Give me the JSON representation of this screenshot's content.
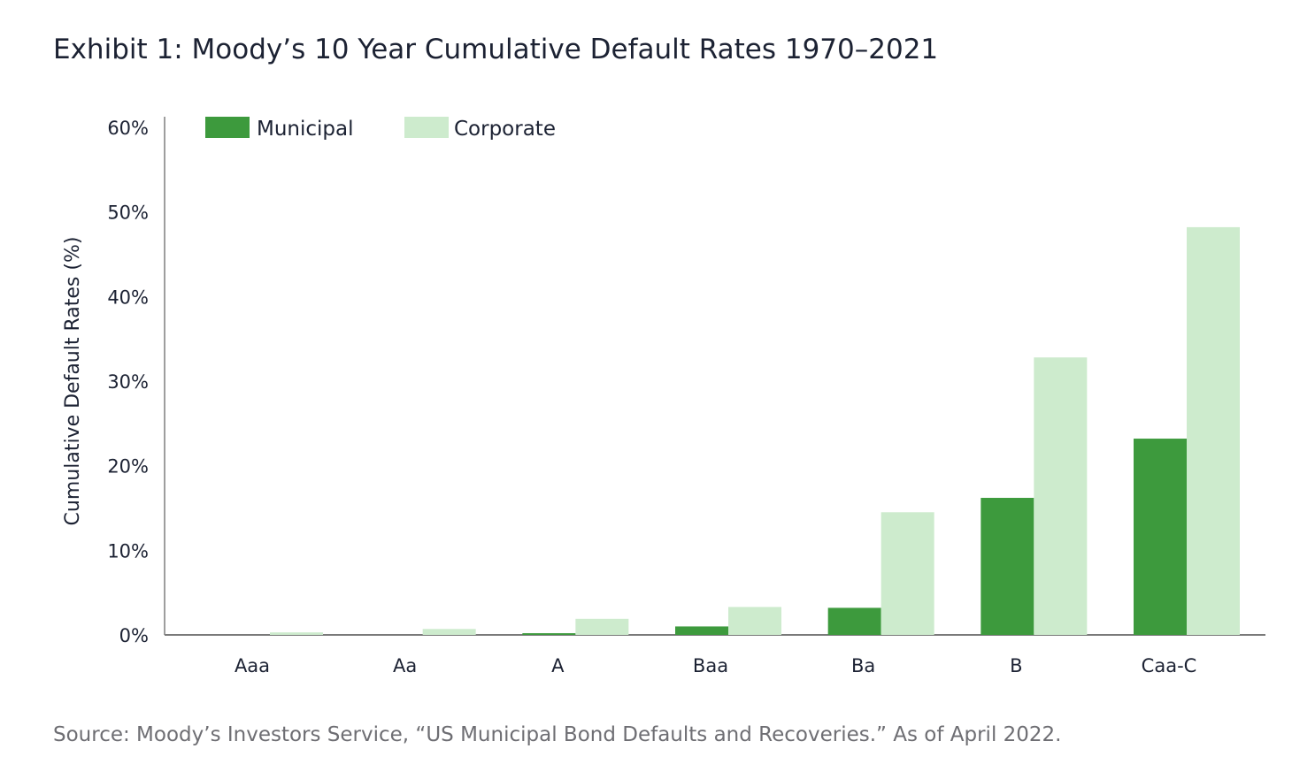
{
  "title": "Exhibit 1: Moody’s 10 Year Cumulative Default Rates 1970–2021",
  "source": "Source: Moody’s Investors Service, “US Municipal Bond Defaults and Recoveries.” As of April 2022.",
  "colors": {
    "municipal": "#3d9a3d",
    "corporate": "#cdebcd",
    "axis": "#9e9e9e",
    "text": "#1c2233"
  },
  "chart_data": {
    "type": "bar",
    "title": "",
    "xlabel": "",
    "ylabel": "Cumulative Default Rates (%)",
    "categories": [
      "Aaa",
      "Aa",
      "A",
      "Baa",
      "Ba",
      "B",
      "Caa-C"
    ],
    "series": [
      {
        "name": "Municipal",
        "values": [
          0.0,
          0.0,
          0.2,
          1.0,
          3.2,
          16.2,
          23.2
        ]
      },
      {
        "name": "Corporate",
        "values": [
          0.3,
          0.7,
          1.9,
          3.3,
          14.5,
          32.8,
          48.2
        ]
      }
    ],
    "ylim": [
      0,
      60
    ],
    "yticks": [
      0,
      10,
      20,
      30,
      40,
      50,
      60
    ],
    "ytick_labels": [
      "0%",
      "10%",
      "20%",
      "30%",
      "40%",
      "50%",
      "60%"
    ],
    "legend": "top-left",
    "grid": false
  }
}
